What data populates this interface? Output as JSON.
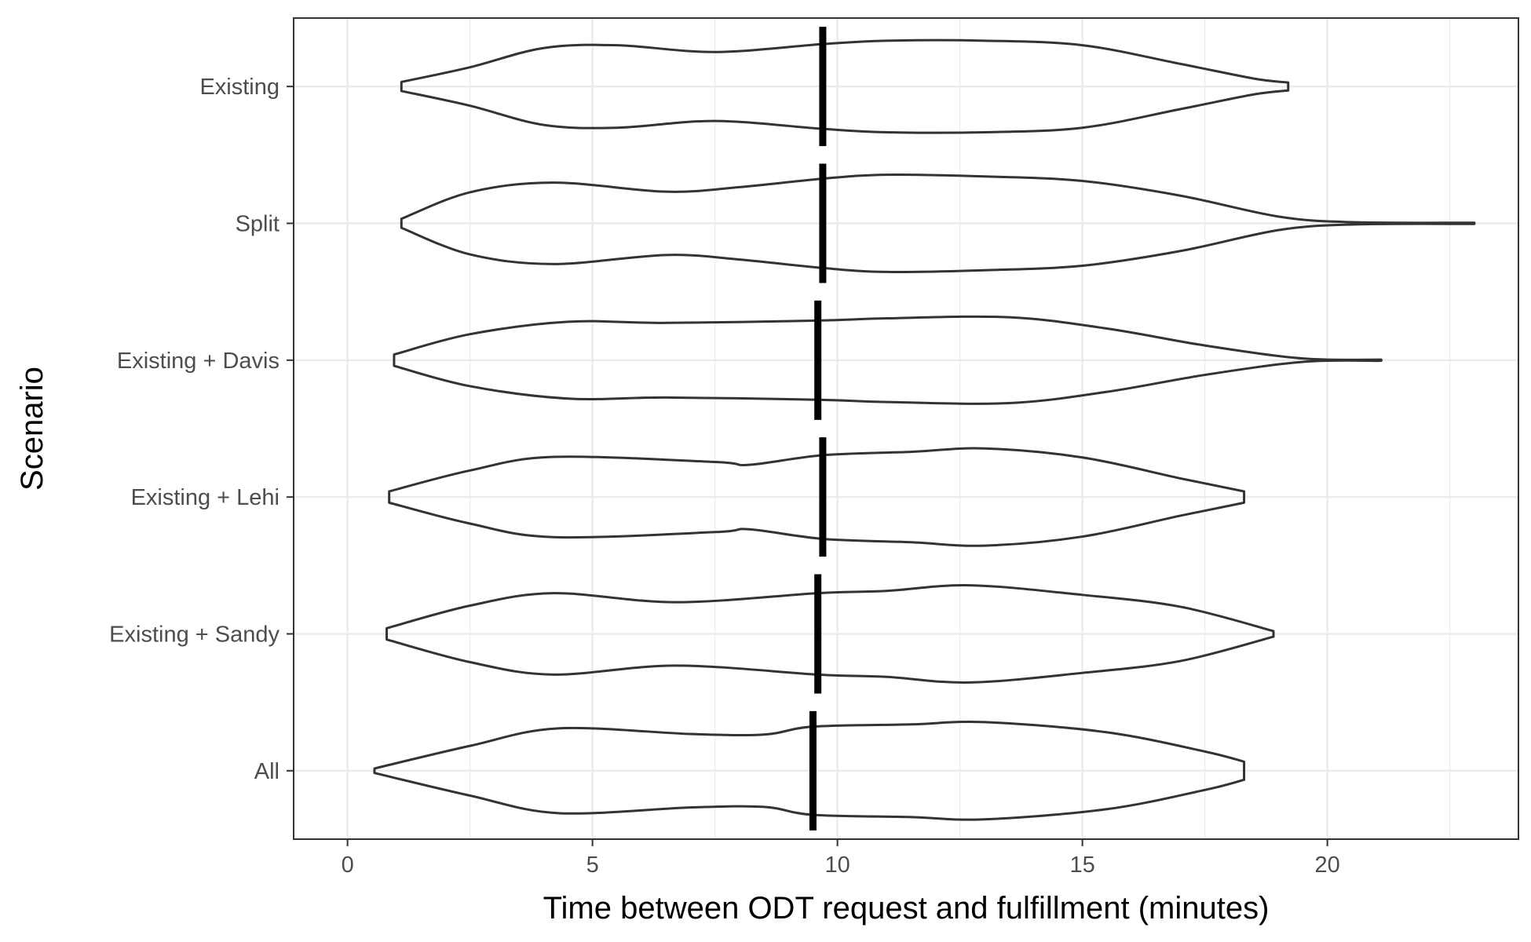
{
  "chart_data": {
    "type": "violin",
    "xlabel": "Time between ODT request and fulfillment (minutes)",
    "ylabel": "Scenario",
    "xlim": [
      -1.1,
      23.9
    ],
    "x_ticks": [
      0,
      5,
      10,
      15,
      20
    ],
    "x_tick_labels": [
      "0",
      "5",
      "10",
      "15",
      "20"
    ],
    "grid": true,
    "theme": "black-and-white panel with light grey gridlines",
    "colors": {
      "violin_outline": "#333333",
      "median_line": "#000000",
      "grid": "#ebebeb",
      "panel_border": "#333333"
    },
    "categories": [
      "Existing",
      "Split",
      "Existing + Davis",
      "Existing + Lehi",
      "Existing + Sandy",
      "All"
    ],
    "series": [
      {
        "name": "Existing",
        "median": 9.7,
        "profile": [
          [
            1.1,
            0.08
          ],
          [
            2.5,
            0.34
          ],
          [
            4.0,
            0.68
          ],
          [
            5.5,
            0.73
          ],
          [
            7.5,
            0.61
          ],
          [
            9.7,
            0.75
          ],
          [
            11.0,
            0.81
          ],
          [
            13.0,
            0.81
          ],
          [
            15.0,
            0.73
          ],
          [
            17.0,
            0.4
          ],
          [
            18.5,
            0.14
          ],
          [
            19.2,
            0.07
          ]
        ]
      },
      {
        "name": "Split",
        "median": 9.7,
        "profile": [
          [
            1.1,
            0.08
          ],
          [
            2.5,
            0.55
          ],
          [
            4.2,
            0.72
          ],
          [
            6.5,
            0.56
          ],
          [
            8.0,
            0.64
          ],
          [
            9.7,
            0.79
          ],
          [
            11.0,
            0.86
          ],
          [
            13.0,
            0.83
          ],
          [
            15.0,
            0.75
          ],
          [
            17.0,
            0.49
          ],
          [
            19.0,
            0.12
          ],
          [
            20.5,
            0.02
          ],
          [
            23.0,
            0.01
          ]
        ]
      },
      {
        "name": "Existing + Davis",
        "median": 9.6,
        "profile": [
          [
            0.95,
            0.1
          ],
          [
            2.5,
            0.46
          ],
          [
            4.5,
            0.68
          ],
          [
            6.5,
            0.66
          ],
          [
            9.6,
            0.7
          ],
          [
            11.0,
            0.74
          ],
          [
            13.5,
            0.76
          ],
          [
            15.5,
            0.56
          ],
          [
            17.5,
            0.26
          ],
          [
            19.5,
            0.03
          ],
          [
            21.1,
            0.01
          ]
        ]
      },
      {
        "name": "Existing + Lehi",
        "median": 9.7,
        "profile": [
          [
            0.85,
            0.1
          ],
          [
            2.5,
            0.47
          ],
          [
            4.2,
            0.71
          ],
          [
            7.5,
            0.62
          ],
          [
            8.2,
            0.57
          ],
          [
            9.7,
            0.74
          ],
          [
            11.5,
            0.8
          ],
          [
            13.0,
            0.86
          ],
          [
            15.0,
            0.7
          ],
          [
            17.0,
            0.33
          ],
          [
            18.3,
            0.1
          ]
        ]
      },
      {
        "name": "Existing + Sandy",
        "median": 9.6,
        "profile": [
          [
            0.8,
            0.1
          ],
          [
            2.5,
            0.5
          ],
          [
            4.2,
            0.72
          ],
          [
            6.7,
            0.56
          ],
          [
            9.6,
            0.72
          ],
          [
            11.0,
            0.76
          ],
          [
            12.7,
            0.86
          ],
          [
            15.0,
            0.69
          ],
          [
            17.0,
            0.48
          ],
          [
            18.9,
            0.05
          ]
        ]
      },
      {
        "name": "All",
        "median": 9.5,
        "profile": [
          [
            0.55,
            0.04
          ],
          [
            2.5,
            0.44
          ],
          [
            4.3,
            0.75
          ],
          [
            7.0,
            0.65
          ],
          [
            8.5,
            0.64
          ],
          [
            9.5,
            0.78
          ],
          [
            11.5,
            0.82
          ],
          [
            13.0,
            0.86
          ],
          [
            15.5,
            0.68
          ],
          [
            17.5,
            0.34
          ],
          [
            18.3,
            0.16
          ]
        ]
      }
    ]
  }
}
